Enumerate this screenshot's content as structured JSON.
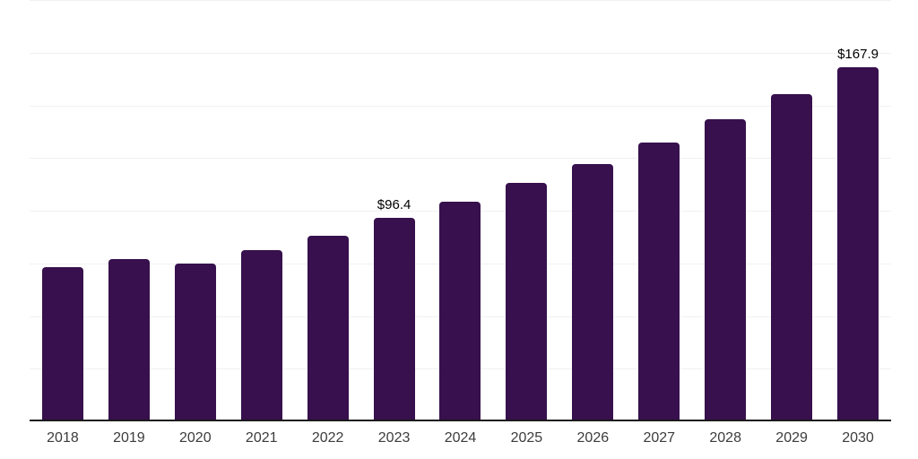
{
  "chart_data": {
    "type": "bar",
    "title": "",
    "xlabel": "",
    "ylabel": "",
    "categories": [
      "2018",
      "2019",
      "2020",
      "2021",
      "2022",
      "2023",
      "2024",
      "2025",
      "2026",
      "2027",
      "2028",
      "2029",
      "2030"
    ],
    "values": [
      73.2,
      77.0,
      75.1,
      81.1,
      88.1,
      96.4,
      104.4,
      113.0,
      122.3,
      132.4,
      143.3,
      155.2,
      167.9
    ],
    "data_labels": [
      "",
      "",
      "",
      "",
      "",
      "$96.4",
      "",
      "",
      "",
      "",
      "",
      "",
      "$167.9"
    ],
    "ylim": [
      0,
      200
    ],
    "gridline_step": 25,
    "grid": "horizontal-only",
    "legend": "none",
    "y_tick_labels_visible": false
  },
  "style": {
    "background": "#ffffff",
    "bar_color": "#37104D",
    "axis_color": "#1a1a1a",
    "gridline_color": "#f1f1f1",
    "tick_label_color": "#3c3c3c",
    "data_label_color": "#000000"
  }
}
